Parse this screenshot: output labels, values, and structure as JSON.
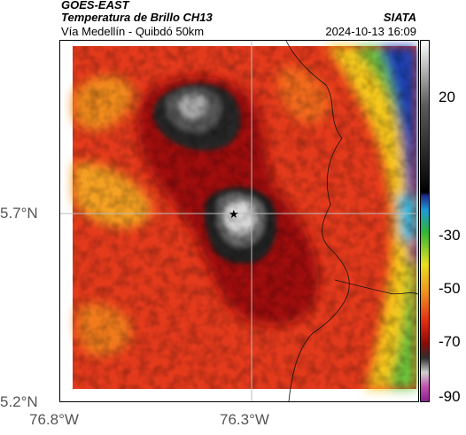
{
  "header": {
    "satellite": "GOES-EAST",
    "product": "Temperatura de Brillo CH13",
    "route": "Vía Medellín - Quibdó 50km",
    "agency": "SIATA",
    "timestamp": "2024-10-13 16:09"
  },
  "axes": {
    "y_ticks": [
      "5.7°N",
      "5.2°N"
    ],
    "x_ticks": [
      "76.8°W",
      "76.3°W"
    ]
  },
  "colorbar": {
    "ticks": [
      "20",
      "-30",
      "-50",
      "-70",
      "-90"
    ]
  },
  "colors": {
    "warm": "#e43a1c",
    "cold_core": "#1a1a1a",
    "land_yellow": "#f6c81e",
    "green": "#49b33a",
    "blue": "#1e3fb0"
  }
}
